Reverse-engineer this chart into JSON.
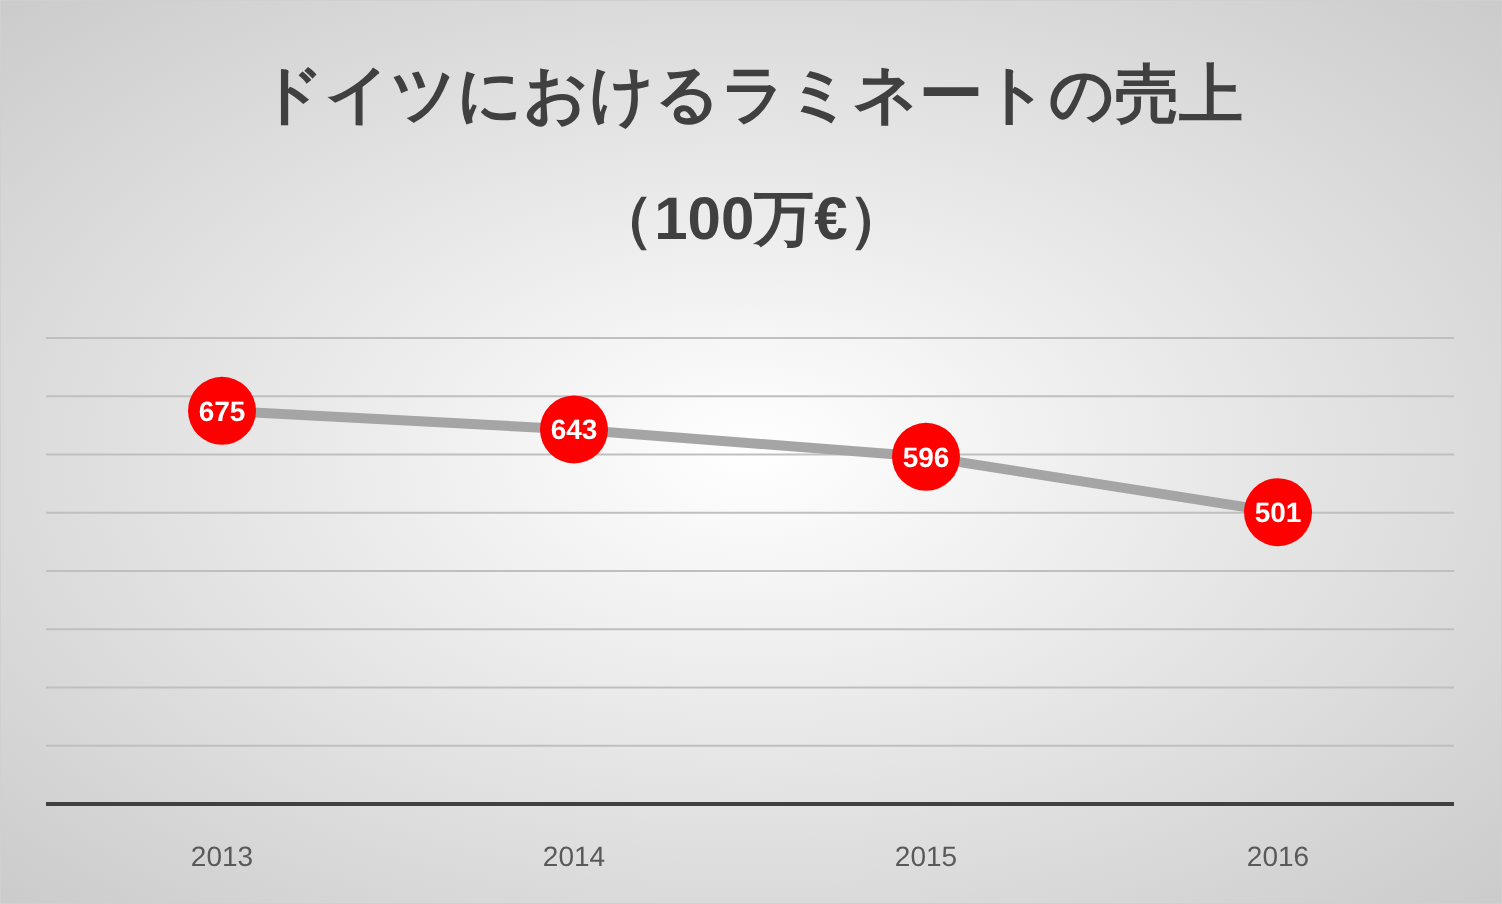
{
  "chart_data": {
    "type": "line",
    "title": "ドイツにおけるラミネートの売上",
    "subtitle": "（100万€）",
    "categories": [
      "2013",
      "2014",
      "2015",
      "2016"
    ],
    "series": [
      {
        "color": "#a5a5a5",
        "values": [
          675,
          643,
          596,
          501
        ]
      }
    ],
    "ylim": [
      0,
      800
    ],
    "yticks": [
      0,
      100,
      200,
      300,
      400,
      500,
      600,
      700,
      800
    ],
    "tick_labels": "x",
    "grid": "y",
    "marker": "circle",
    "data_labels": true
  }
}
